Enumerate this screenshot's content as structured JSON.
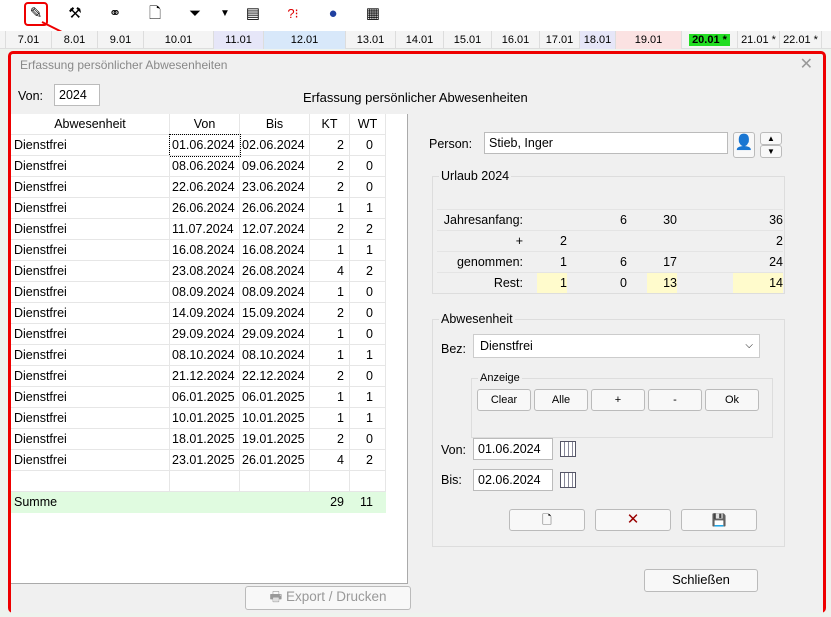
{
  "toolbar": {
    "icons": [
      "person-edit-icon",
      "tools-icon",
      "binoculars-icon",
      "preview-icon",
      "filter-icon",
      "dropdown-arrow-icon",
      "import-icon",
      "help-icon",
      "globe-icon",
      "calendar-icon"
    ]
  },
  "datebar": [
    "7.01",
    "8.01",
    "9.01",
    "10.01",
    "11.01",
    "12.01",
    "13.01",
    "14.01",
    "15.01",
    "16.01",
    "17.01",
    "18.01",
    "19.01",
    "20.01 *",
    "21.01 *",
    "22.01 *"
  ],
  "dialog": {
    "title": "Erfassung persönlicher Abwesenheiten",
    "heading": "Erfassung persönlicher Abwesenheiten",
    "von_label": "Von:",
    "von_value": "2024",
    "table": {
      "headers": [
        "Abwesenheit",
        "Von",
        "Bis",
        "KT",
        "WT"
      ],
      "rows": [
        [
          "Dienstfrei",
          "01.06.2024",
          "02.06.2024",
          "2",
          "0"
        ],
        [
          "Dienstfrei",
          "08.06.2024",
          "09.06.2024",
          "2",
          "0"
        ],
        [
          "Dienstfrei",
          "22.06.2024",
          "23.06.2024",
          "2",
          "0"
        ],
        [
          "Dienstfrei",
          "26.06.2024",
          "26.06.2024",
          "1",
          "1"
        ],
        [
          "Dienstfrei",
          "11.07.2024",
          "12.07.2024",
          "2",
          "2"
        ],
        [
          "Dienstfrei",
          "16.08.2024",
          "16.08.2024",
          "1",
          "1"
        ],
        [
          "Dienstfrei",
          "23.08.2024",
          "26.08.2024",
          "4",
          "2"
        ],
        [
          "Dienstfrei",
          "08.09.2024",
          "08.09.2024",
          "1",
          "0"
        ],
        [
          "Dienstfrei",
          "14.09.2024",
          "15.09.2024",
          "2",
          "0"
        ],
        [
          "Dienstfrei",
          "29.09.2024",
          "29.09.2024",
          "1",
          "0"
        ],
        [
          "Dienstfrei",
          "08.10.2024",
          "08.10.2024",
          "1",
          "1"
        ],
        [
          "Dienstfrei",
          "21.12.2024",
          "22.12.2024",
          "2",
          "0"
        ],
        [
          "Dienstfrei",
          "06.01.2025",
          "06.01.2025",
          "1",
          "1"
        ],
        [
          "Dienstfrei",
          "10.01.2025",
          "10.01.2025",
          "1",
          "1"
        ],
        [
          "Dienstfrei",
          "18.01.2025",
          "19.01.2025",
          "2",
          "0"
        ],
        [
          "Dienstfrei",
          "23.01.2025",
          "26.01.2025",
          "4",
          "2"
        ]
      ],
      "sum": {
        "label": "Summe",
        "kt": "29",
        "wt": "11"
      }
    },
    "export_label": "Export / Drucken",
    "person_label": "Person:",
    "person_value": "Stieb, Inger",
    "urlaub": {
      "title": "Urlaub 2024",
      "rows": [
        [
          "Jahresanfang:",
          "",
          "6",
          "30",
          "36"
        ],
        [
          "+",
          "2",
          "",
          "",
          "2"
        ],
        [
          "genommen:",
          "1",
          "6",
          "17",
          "24"
        ],
        [
          "Rest:",
          "1",
          "0",
          "13",
          "14"
        ]
      ]
    },
    "abwesenheit": {
      "title": "Abwesenheit",
      "bez_label": "Bez:",
      "bez_value": "Dienstfrei",
      "anzeige": "Anzeige",
      "buttons": [
        "Clear",
        "Alle",
        "+",
        "-",
        "Ok"
      ],
      "von_label": "Von:",
      "von_value": "01.06.2024",
      "bis_label": "Bis:",
      "bis_value": "02.06.2024"
    },
    "close_label": "Schließen"
  },
  "colors": {
    "highlight": "#e00000",
    "today": "#22dd22",
    "rest": "#fffbcc",
    "sum": "#e0fbe0"
  }
}
